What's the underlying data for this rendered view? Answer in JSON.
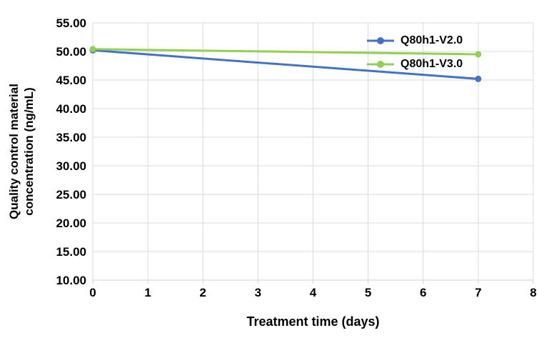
{
  "chart_data": {
    "type": "line",
    "title": "",
    "xlabel": "Treatment time (days)",
    "ylabel": "Quality control material concentration (ng/mL)",
    "ylabel_lines": [
      "Quality control material",
      "concentration (ng/mL)"
    ],
    "x": [
      0,
      7
    ],
    "series": [
      {
        "name": "Q80h1-V2.0",
        "color": "#4472C4",
        "values": [
          50.2,
          45.2
        ]
      },
      {
        "name": "Q80h1-V3.0",
        "color": "#92D050",
        "values": [
          50.4,
          49.5
        ]
      }
    ],
    "xlim": [
      0,
      8
    ],
    "ylim": [
      10,
      55
    ],
    "x_ticks": [
      0,
      1,
      2,
      3,
      4,
      5,
      6,
      7,
      8
    ],
    "x_tick_labels": [
      "0",
      "1",
      "2",
      "3",
      "4",
      "5",
      "6",
      "7",
      "8"
    ],
    "y_ticks": [
      10,
      15,
      20,
      25,
      30,
      35,
      40,
      45,
      50,
      55
    ],
    "y_tick_labels": [
      "10.00",
      "15.00",
      "20.00",
      "25.00",
      "30.00",
      "35.00",
      "40.00",
      "45.00",
      "50.00",
      "55.00"
    ],
    "grid": true,
    "legend_position": "inside-top-right",
    "legend_entries": [
      "Q80h1-V2.0",
      "Q80h1-V3.0"
    ]
  },
  "style": {
    "background": "#FFFFFF",
    "gridline_color": "#D9D9D9",
    "axis_line_color": "#D0D0D0",
    "text_color": "#000000"
  }
}
